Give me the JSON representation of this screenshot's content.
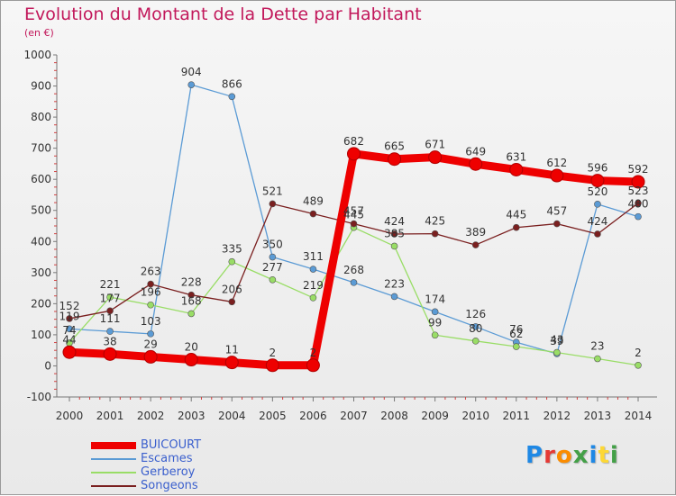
{
  "chart_data": {
    "type": "line",
    "title": "Evolution du Montant de la Dette par Habitant",
    "subtitle": "(en €)",
    "x": [
      "2000",
      "2001",
      "2002",
      "2003",
      "2004",
      "2005",
      "2006",
      "2007",
      "2008",
      "2009",
      "2010",
      "2011",
      "2012",
      "2013",
      "2014"
    ],
    "ylim": [
      -100,
      1000
    ],
    "yticks": [
      -100,
      0,
      100,
      200,
      300,
      400,
      500,
      600,
      700,
      800,
      900,
      1000
    ],
    "grid": false,
    "legend_position": "bottom-left",
    "series": [
      {
        "name": "BUICOURT",
        "color": "#ee0000",
        "values": [
          44,
          38,
          29,
          20,
          11,
          2,
          2,
          682,
          665,
          671,
          649,
          631,
          612,
          596,
          592
        ]
      },
      {
        "name": "Escames",
        "color": "#5b9bd5",
        "values": [
          119,
          111,
          103,
          904,
          866,
          350,
          311,
          268,
          223,
          174,
          126,
          76,
          39,
          520,
          480
        ]
      },
      {
        "name": "Gerberoy",
        "color": "#99dd66",
        "values": [
          74,
          221,
          196,
          168,
          335,
          277,
          219,
          445,
          385,
          99,
          80,
          62,
          43,
          23,
          2
        ]
      },
      {
        "name": "Songeons",
        "color": "#7a1f1f",
        "values": [
          152,
          177,
          263,
          228,
          206,
          521,
          489,
          457,
          424,
          425,
          389,
          445,
          457,
          424,
          523
        ]
      }
    ]
  },
  "logo": {
    "letters": [
      "P",
      "r",
      "o",
      "x",
      "i",
      "t",
      "i"
    ],
    "colors": [
      "#1e88e5",
      "#e53935",
      "#fb8c00",
      "#43a047",
      "#1e88e5",
      "#fdd835",
      "#43a047"
    ]
  }
}
